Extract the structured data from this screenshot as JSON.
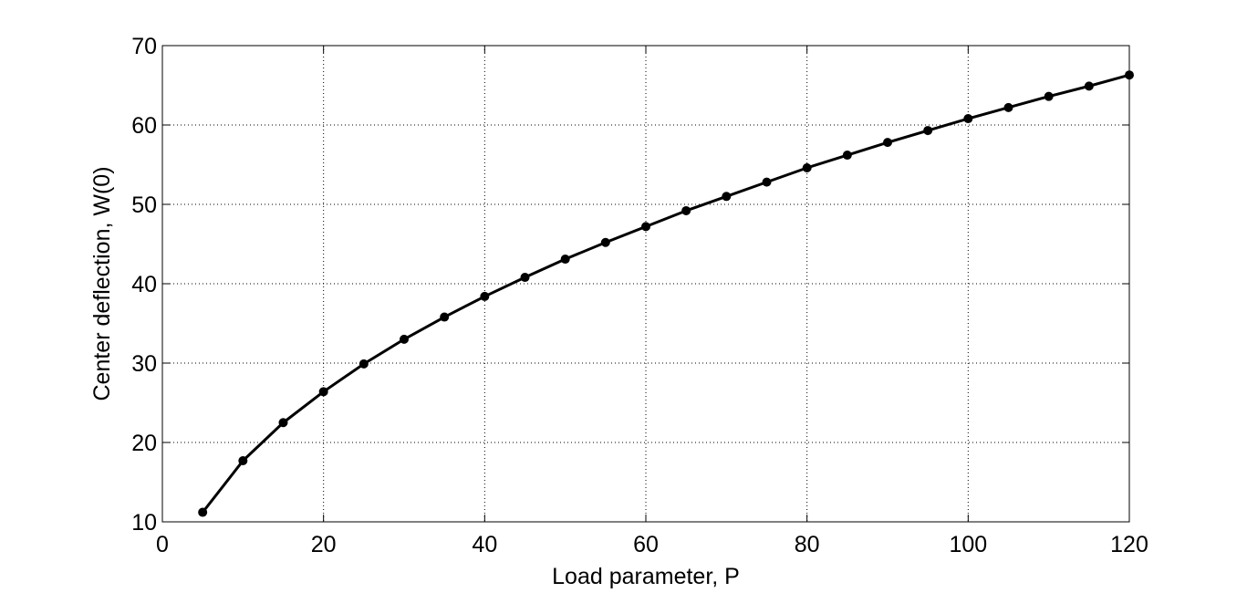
{
  "chart_data": {
    "type": "line",
    "title": "",
    "xlabel": "Load parameter, P",
    "ylabel": "Center deflection, W(0)",
    "xlim": [
      0,
      120
    ],
    "ylim": [
      10,
      70
    ],
    "xticks": [
      0,
      20,
      40,
      60,
      80,
      100,
      120
    ],
    "yticks": [
      10,
      20,
      30,
      40,
      50,
      60,
      70
    ],
    "grid": true,
    "legend": "none",
    "series": [
      {
        "color": "#000000",
        "marker": "circle",
        "x": [
          5,
          10,
          15,
          20,
          25,
          30,
          35,
          40,
          45,
          50,
          55,
          60,
          65,
          70,
          75,
          80,
          85,
          90,
          95,
          100,
          105,
          110,
          115,
          120
        ],
        "y": [
          11.2,
          17.7,
          22.5,
          26.4,
          29.9,
          33.0,
          35.8,
          38.4,
          40.8,
          43.1,
          45.2,
          47.2,
          49.2,
          51.0,
          52.8,
          54.6,
          56.2,
          57.8,
          59.3,
          60.8,
          62.2,
          63.6,
          64.9,
          66.3
        ]
      }
    ]
  }
}
